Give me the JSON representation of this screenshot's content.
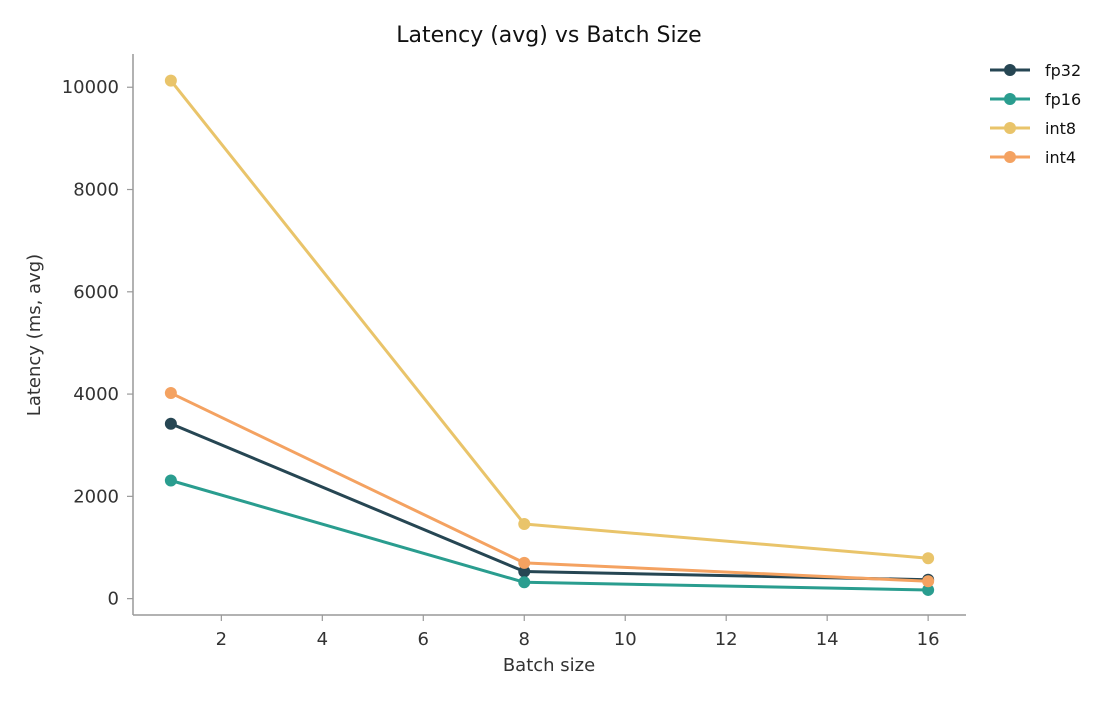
{
  "chart_data": {
    "type": "line",
    "title": "Latency (avg) vs Batch Size",
    "xlabel": "Batch size",
    "ylabel": "Latency (ms, avg)",
    "x": [
      1,
      8,
      16
    ],
    "xlim": [
      0.25,
      16.75
    ],
    "ylim": [
      -320,
      10650
    ],
    "xticks": [
      2,
      4,
      6,
      8,
      10,
      12,
      14,
      16
    ],
    "yticks": [
      0,
      2000,
      4000,
      6000,
      8000,
      10000
    ],
    "grid": false,
    "legend_position": "top-right outside plot",
    "series": [
      {
        "name": "fp32",
        "color": "#264653",
        "values": [
          3420,
          530,
          370
        ]
      },
      {
        "name": "fp16",
        "color": "#2a9d8f",
        "values": [
          2310,
          320,
          170
        ]
      },
      {
        "name": "int8",
        "color": "#e9c46a",
        "values": [
          10130,
          1460,
          790
        ]
      },
      {
        "name": "int4",
        "color": "#f4a261",
        "values": [
          4020,
          700,
          340
        ]
      }
    ]
  }
}
